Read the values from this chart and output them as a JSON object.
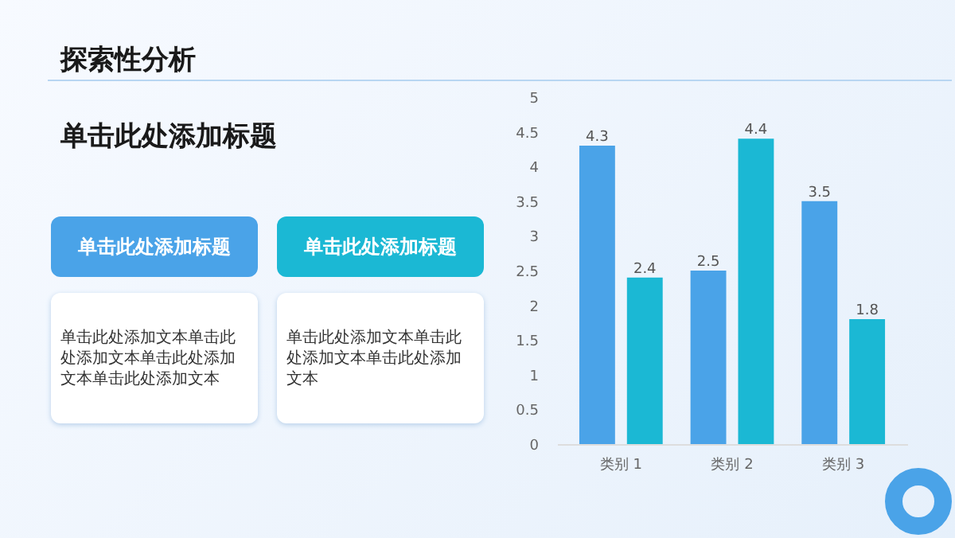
{
  "chart_data": {
    "type": "bar",
    "title": "探索性分析",
    "subtitle": "单击此处添加标题",
    "annotations": [
      "单击此处添加标题",
      "单击此处添加文本单击此处添加文本单击此处添加文本单击此处添加文本",
      "单击此处添加标题",
      "单击此处添加文本单击此处添加文本单击此处添加文本"
    ],
    "categories": [
      "类别 1",
      "类别 2",
      "类别 3"
    ],
    "series": [
      {
        "color": "#4aa3e8",
        "values": [
          4.3,
          2.5,
          3.5
        ]
      },
      {
        "color": "#1bb8d4",
        "values": [
          2.4,
          4.4,
          1.8
        ]
      }
    ],
    "ylim": [
      0,
      5
    ],
    "yticks": [
      0,
      0.5,
      1,
      1.5,
      2,
      2.5,
      3,
      3.5,
      4,
      4.5,
      5
    ],
    "data_labels": true,
    "grid": false,
    "legend": false
  }
}
